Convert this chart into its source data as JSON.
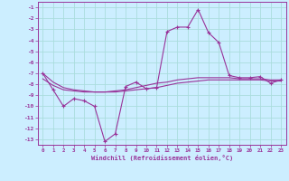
{
  "hours": [
    0,
    1,
    2,
    3,
    4,
    5,
    6,
    7,
    8,
    9,
    10,
    11,
    12,
    13,
    14,
    15,
    16,
    17,
    18,
    19,
    20,
    21,
    22,
    23
  ],
  "main_line": [
    -7.0,
    -8.5,
    -10.0,
    -9.3,
    -9.5,
    -10.0,
    -13.2,
    -12.5,
    -8.2,
    -7.8,
    -8.4,
    -8.3,
    -3.2,
    -2.8,
    -2.8,
    -1.2,
    -3.3,
    -4.2,
    -7.2,
    -7.4,
    -7.4,
    -7.3,
    -7.9,
    -7.6
  ],
  "smooth_line1": [
    -7.0,
    -7.8,
    -8.3,
    -8.5,
    -8.6,
    -8.7,
    -8.7,
    -8.7,
    -8.6,
    -8.5,
    -8.4,
    -8.3,
    -8.1,
    -7.9,
    -7.8,
    -7.7,
    -7.6,
    -7.6,
    -7.6,
    -7.6,
    -7.6,
    -7.6,
    -7.7,
    -7.7
  ],
  "smooth_line2": [
    -7.5,
    -8.1,
    -8.5,
    -8.6,
    -8.7,
    -8.7,
    -8.7,
    -8.6,
    -8.5,
    -8.3,
    -8.1,
    -7.9,
    -7.8,
    -7.6,
    -7.5,
    -7.4,
    -7.4,
    -7.4,
    -7.4,
    -7.5,
    -7.5,
    -7.5,
    -7.6,
    -7.6
  ],
  "bg_color": "#cceeff",
  "grid_color": "#aadddd",
  "line_color": "#993399",
  "xlabel": "Windchill (Refroidissement éolien,°C)",
  "ylim_min": -13.5,
  "ylim_max": -0.5,
  "xlim_min": -0.5,
  "xlim_max": 23.5
}
